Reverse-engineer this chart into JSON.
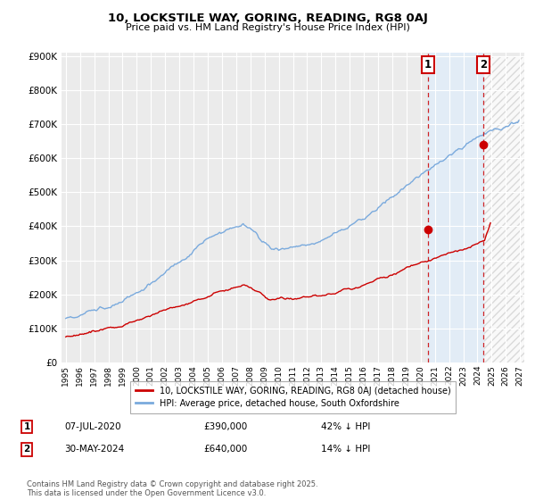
{
  "title": "10, LOCKSTILE WAY, GORING, READING, RG8 0AJ",
  "subtitle": "Price paid vs. HM Land Registry's House Price Index (HPI)",
  "background_color": "#ffffff",
  "plot_bg_color": "#ebebeb",
  "grid_color": "#ffffff",
  "hpi_color": "#7aaadd",
  "price_color": "#cc0000",
  "hatch_color": "#cccccc",
  "shade_color": "#ddeeff",
  "ylim": [
    0,
    900000
  ],
  "xlim_start": 1994.7,
  "xlim_end": 2027.3,
  "transaction1_x": 2020.52,
  "transaction1_y": 390000,
  "transaction2_x": 2024.42,
  "transaction2_y": 640000,
  "legend_label1": "10, LOCKSTILE WAY, GORING, READING, RG8 0AJ (detached house)",
  "legend_label2": "HPI: Average price, detached house, South Oxfordshire",
  "t1_date": "07-JUL-2020",
  "t1_price": "£390,000",
  "t1_hpi": "42% ↓ HPI",
  "t2_date": "30-MAY-2024",
  "t2_price": "£640,000",
  "t2_hpi": "14% ↓ HPI",
  "footer": "Contains HM Land Registry data © Crown copyright and database right 2025.\nThis data is licensed under the Open Government Licence v3.0.",
  "yticks": [
    0,
    100000,
    200000,
    300000,
    400000,
    500000,
    600000,
    700000,
    800000,
    900000
  ],
  "ytick_labels": [
    "£0",
    "£100K",
    "£200K",
    "£300K",
    "£400K",
    "£500K",
    "£600K",
    "£700K",
    "£800K",
    "£900K"
  ]
}
